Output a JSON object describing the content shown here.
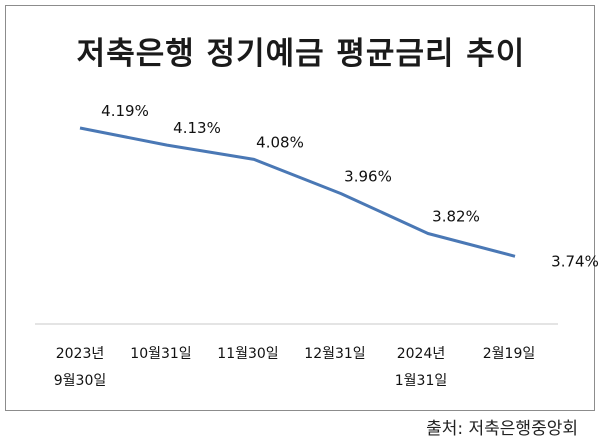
{
  "chart_data": {
    "type": "line",
    "title": "저축은행 정기예금 평균금리 추이",
    "categories": [
      [
        "2023년",
        "9월30일"
      ],
      [
        "10월31일"
      ],
      [
        "11월30일"
      ],
      [
        "12월31일"
      ],
      [
        "2024년",
        "1월31일"
      ],
      [
        "2월19일"
      ]
    ],
    "values": [
      4.19,
      4.13,
      4.08,
      3.96,
      3.82,
      3.74
    ],
    "data_labels": [
      "4.19%",
      "4.13%",
      "4.08%",
      "3.96%",
      "3.82%",
      "3.74%"
    ],
    "xlabel": "",
    "ylabel": "",
    "grid": false,
    "line_color": "#4a78b5"
  },
  "source": "출처: 저축은행중앙회"
}
